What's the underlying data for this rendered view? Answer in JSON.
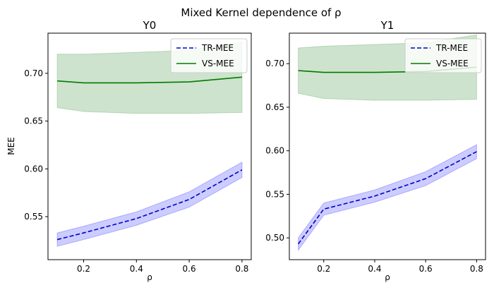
{
  "figure": {
    "suptitle": "Mixed Kernel dependence of ρ"
  },
  "colors": {
    "tr": "#0000cc",
    "tr_band": "#0000ff",
    "vs": "#007a00",
    "vs_band": "#2e8b2e",
    "axis": "#000000",
    "background": "#ffffff"
  },
  "chart_data": [
    {
      "type": "line",
      "title": "Y0",
      "xlabel": "ρ",
      "ylabel": "MEE",
      "xlim": [
        0.065,
        0.835
      ],
      "ylim": [
        0.505,
        0.742
      ],
      "x_ticks": [
        0.2,
        0.4,
        0.6,
        0.8
      ],
      "x_tick_labels": [
        "0.2",
        "0.4",
        "0.6",
        "0.8"
      ],
      "y_ticks": [
        0.55,
        0.6,
        0.65,
        0.7
      ],
      "y_tick_labels": [
        "0.55",
        "0.60",
        "0.65",
        "0.70"
      ],
      "grid": false,
      "legend": "top-right",
      "x": [
        0.1,
        0.2,
        0.4,
        0.6,
        0.8
      ],
      "series": [
        {
          "name": "TR-MEE",
          "style": "dashed",
          "color_key": "tr",
          "values": [
            0.526,
            0.533,
            0.548,
            0.568,
            0.599
          ],
          "lower": [
            0.519,
            0.526,
            0.541,
            0.56,
            0.591
          ],
          "upper": [
            0.533,
            0.54,
            0.555,
            0.576,
            0.607
          ]
        },
        {
          "name": "VS-MEE",
          "style": "solid",
          "color_key": "vs",
          "values": [
            0.692,
            0.69,
            0.69,
            0.691,
            0.696
          ],
          "lower": [
            0.664,
            0.66,
            0.658,
            0.658,
            0.659
          ],
          "upper": [
            0.72,
            0.72,
            0.722,
            0.724,
            0.733
          ]
        }
      ]
    },
    {
      "type": "line",
      "title": "Y1",
      "xlabel": "ρ",
      "ylabel": "",
      "xlim": [
        0.065,
        0.835
      ],
      "ylim": [
        0.475,
        0.735
      ],
      "x_ticks": [
        0.2,
        0.4,
        0.6,
        0.8
      ],
      "x_tick_labels": [
        "0.2",
        "0.4",
        "0.6",
        "0.8"
      ],
      "y_ticks": [
        0.5,
        0.55,
        0.6,
        0.65,
        0.7
      ],
      "y_tick_labels": [
        "0.50",
        "0.55",
        "0.60",
        "0.65",
        "0.70"
      ],
      "grid": false,
      "legend": "top-right",
      "x": [
        0.1,
        0.2,
        0.4,
        0.6,
        0.8
      ],
      "series": [
        {
          "name": "TR-MEE",
          "style": "dashed",
          "color_key": "tr",
          "values": [
            0.493,
            0.533,
            0.548,
            0.568,
            0.599
          ],
          "lower": [
            0.486,
            0.526,
            0.541,
            0.56,
            0.591
          ],
          "upper": [
            0.5,
            0.54,
            0.555,
            0.576,
            0.607
          ]
        },
        {
          "name": "VS-MEE",
          "style": "solid",
          "color_key": "vs",
          "values": [
            0.692,
            0.69,
            0.69,
            0.691,
            0.696
          ],
          "lower": [
            0.666,
            0.66,
            0.658,
            0.658,
            0.659
          ],
          "upper": [
            0.718,
            0.72,
            0.722,
            0.724,
            0.733
          ]
        }
      ]
    }
  ]
}
